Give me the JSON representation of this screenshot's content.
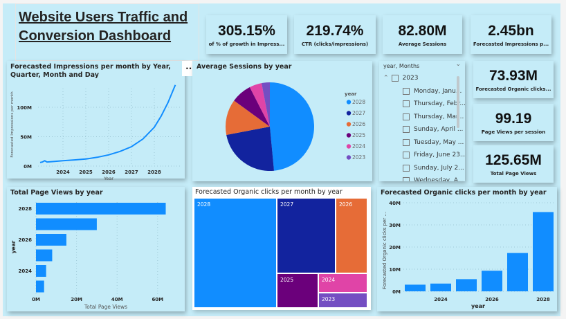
{
  "title": "Website Users Traffic and Conversion Dashboard",
  "title_lines": [
    "Website Users Traffic and",
    "Conversion Dashboard"
  ],
  "kpis_top": [
    {
      "value": "305.15%",
      "label": "of % of growth in Impress..."
    },
    {
      "value": "219.74%",
      "label": "CTR (clicks/impressions)"
    },
    {
      "value": "82.80M",
      "label": "Average Sessions"
    },
    {
      "value": "2.45bn",
      "label": "Forecasted Impressions p..."
    }
  ],
  "kpis_side": [
    {
      "value": "73.93M",
      "label": "Forecasted Organic clicks..."
    },
    {
      "value": "99.19",
      "label": "Page Views per session"
    },
    {
      "value": "125.65M",
      "label": "Total Page Views"
    }
  ],
  "more_options": "...",
  "slicer": {
    "header": "year, Months",
    "year": "2023",
    "items": [
      "Monday, Janu...",
      "Thursday, Febr...",
      "Thursday, Mar...",
      "Sunday, April ...",
      "Tuesday, May ...",
      "Friday, June 23...",
      "Sunday, July 2...",
      "Wednesday, A..."
    ]
  },
  "colors": {
    "2028": "#118dff",
    "2027": "#12239e",
    "2026": "#e66c37",
    "2025": "#6b007b",
    "2024": "#e044a7",
    "2023": "#744ec2",
    "background": "#c5ecf8"
  },
  "chart_data": [
    {
      "type": "line",
      "title": "Forecasted Impressions per month by Year, Quarter, Month and Day",
      "xlabel": "Year",
      "ylabel": "Forecasted Impressions per month",
      "x_ticks": [
        "2024",
        "2025",
        "2026",
        "2027",
        "2028"
      ],
      "y_ticks": [
        "0M",
        "50M",
        "100M"
      ],
      "ylim": [
        0,
        140
      ],
      "x": [
        2023.0,
        2023.1,
        2023.2,
        2023.3,
        2023.5,
        2024.0,
        2024.5,
        2025.0,
        2025.5,
        2026.0,
        2026.5,
        2027.0,
        2027.5,
        2028.0,
        2028.3,
        2028.6,
        2028.92
      ],
      "values": [
        6,
        7,
        9,
        7,
        7.5,
        9,
        10.5,
        12,
        15,
        19,
        25,
        33,
        46,
        66,
        85,
        108,
        138
      ]
    },
    {
      "type": "pie",
      "title": "Average Sessions by year",
      "legend_title": "year",
      "legend_position": "right",
      "categories": [
        "2028",
        "2027",
        "2026",
        "2025",
        "2024",
        "2023"
      ],
      "values": [
        48.5,
        23.5,
        13,
        7.5,
        4.5,
        3
      ]
    },
    {
      "type": "bar",
      "orientation": "horizontal",
      "title": "Total Page Views by year",
      "xlabel": "Total Page Views",
      "ylabel": "year",
      "categories": [
        "2028",
        "2027",
        "2026",
        "2025",
        "2024",
        "2023"
      ],
      "y_tick_labels": [
        "2028",
        "",
        "2026",
        "",
        "2024",
        ""
      ],
      "x_ticks": [
        "0M",
        "20M",
        "40M",
        "60M"
      ],
      "values": [
        64,
        30,
        15,
        8,
        5,
        4
      ],
      "xlim": [
        0,
        66
      ]
    },
    {
      "type": "treemap",
      "title": "Forecasted Organic clicks per month by year",
      "categories": [
        "2028",
        "2027",
        "2026",
        "2025",
        "2024",
        "2023"
      ]
    },
    {
      "type": "bar",
      "title": "Forecasted Organic clicks per month by year",
      "xlabel": "year",
      "ylabel": "Forecasted Organic clicks per ...",
      "categories": [
        "2023",
        "2024",
        "2025",
        "2026",
        "2027",
        "2028"
      ],
      "x_tick_labels": [
        "",
        "2024",
        "",
        "2026",
        "",
        "2028"
      ],
      "y_ticks": [
        "0M",
        "10M",
        "20M",
        "30M",
        "40M"
      ],
      "values": [
        3,
        3.5,
        5.5,
        9.3,
        17.3,
        35.8
      ],
      "ylim": [
        0,
        40
      ]
    }
  ]
}
